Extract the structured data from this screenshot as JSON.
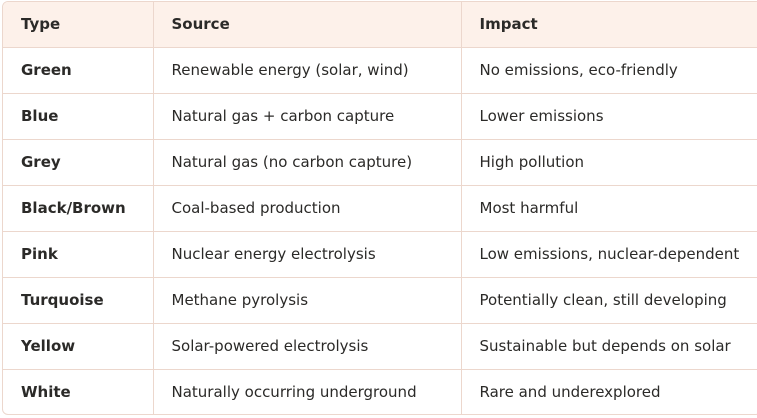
{
  "table": {
    "headers": [
      "Type",
      "Source",
      "Impact"
    ],
    "rows": [
      {
        "type": "Green",
        "source": "Renewable energy (solar, wind)",
        "impact": "No emissions, eco-friendly"
      },
      {
        "type": "Blue",
        "source": "Natural gas + carbon capture",
        "impact": "Lower emissions"
      },
      {
        "type": "Grey",
        "source": "Natural gas (no carbon capture)",
        "impact": "High pollution"
      },
      {
        "type": "Black/Brown",
        "source": "Coal-based production",
        "impact": "Most harmful"
      },
      {
        "type": "Pink",
        "source": "Nuclear energy electrolysis",
        "impact": "Low emissions, nuclear-dependent"
      },
      {
        "type": "Turquoise",
        "source": "Methane pyrolysis",
        "impact": "Potentially clean, still developing"
      },
      {
        "type": "Yellow",
        "source": "Solar-powered electrolysis",
        "impact": "Sustainable but depends on solar"
      },
      {
        "type": "White",
        "source": "Naturally occurring underground",
        "impact": "Rare and underexplored"
      }
    ]
  },
  "colors": {
    "header_bg": "#fdf1ea",
    "border": "#ecd7cd",
    "text": "#2b2a28"
  }
}
